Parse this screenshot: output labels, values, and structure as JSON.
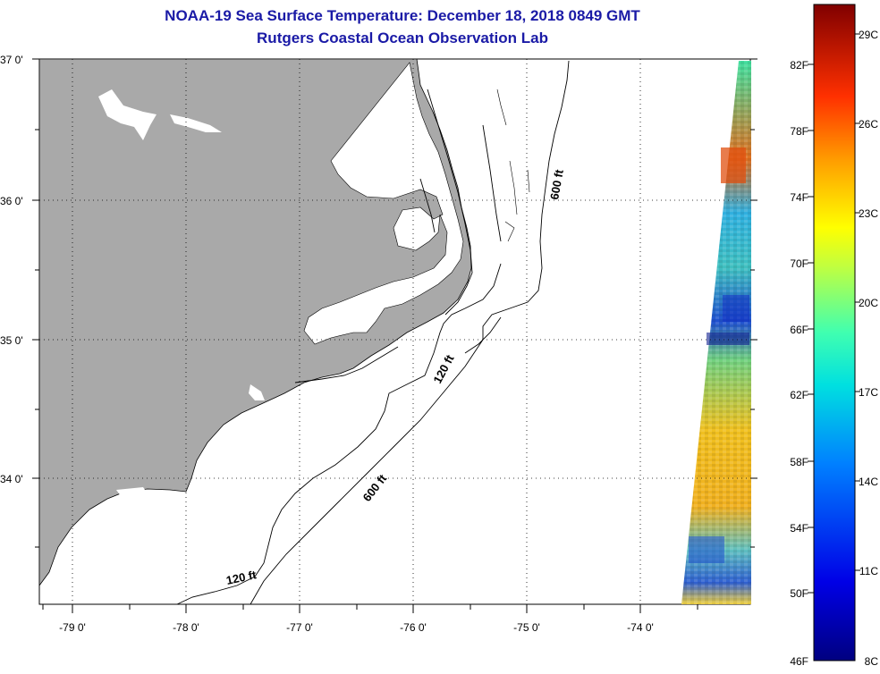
{
  "title_line1": "NOAA-19 Sea Surface Temperature:  December 18, 2018 0849 GMT",
  "title_line2": "Rutgers Coastal Ocean Observation Lab",
  "lat_labels": [
    "37 0'",
    "36 0'",
    "35 0'",
    "34 0'"
  ],
  "lon_labels": [
    "-79 0'",
    "-78 0'",
    "-77 0'",
    "-76 0'",
    "-75 0'",
    "-74 0'"
  ],
  "contour_labels": [
    "600 ft",
    "120 ft",
    "600 ft",
    "120 ft"
  ],
  "colorbar": {
    "fahrenheit": [
      "82F",
      "78F",
      "74F",
      "70F",
      "66F",
      "62F",
      "58F",
      "54F",
      "50F",
      "46F"
    ],
    "celsius": [
      "29C",
      "26C",
      "23C",
      "20C",
      "17C",
      "14C",
      "11C",
      "8C"
    ]
  },
  "colors": {
    "title": "#1a1aa6",
    "land": "#a9a9a9",
    "ocean": "#ffffff"
  }
}
